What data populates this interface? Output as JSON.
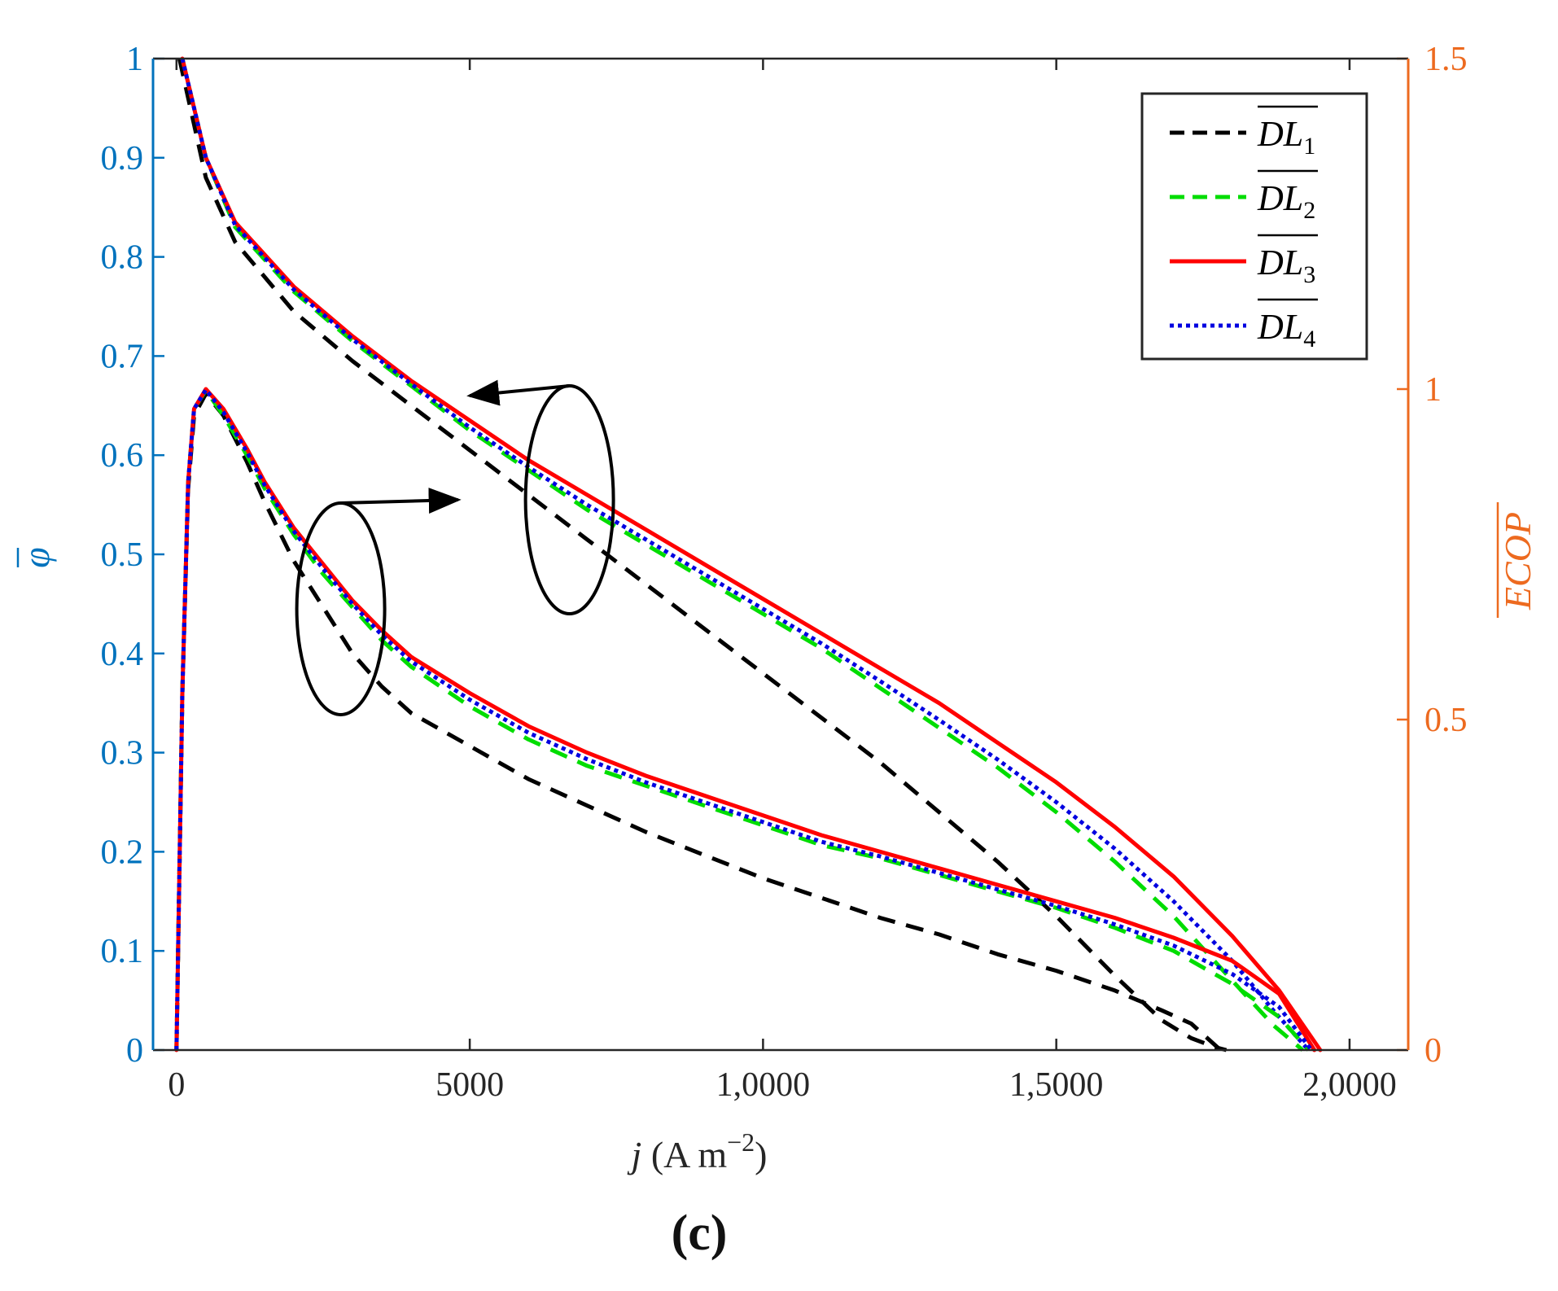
{
  "chart_data": {
    "type": "line",
    "caption": "(c)",
    "xlabel": {
      "var": "j",
      "unit": "(A m",
      "exp": "−2",
      "close": ")"
    },
    "ylabel_left": "φ",
    "ylabel_right": "ECOP",
    "xlim": [
      -400,
      21000
    ],
    "ylim_left": [
      0,
      1
    ],
    "ylim_right": [
      0,
      1.5
    ],
    "x_ticks": [
      0,
      5000,
      10000,
      15000,
      20000
    ],
    "x_tick_labels": [
      "0",
      "5000",
      "1,0000",
      "1,5000",
      "2,0000"
    ],
    "y_left_ticks": [
      0,
      0.1,
      0.2,
      0.3,
      0.4,
      0.5,
      0.6,
      0.7,
      0.8,
      0.9,
      1
    ],
    "y_left_tick_labels": [
      "0",
      "0.1",
      "0.2",
      "0.3",
      "0.4",
      "0.5",
      "0.6",
      "0.7",
      "0.8",
      "0.9",
      "1"
    ],
    "y_right_ticks": [
      0,
      0.5,
      1,
      1.5
    ],
    "y_right_tick_labels": [
      "0",
      "0.5",
      "1",
      "1.5"
    ],
    "colors": {
      "left_axis": "#0072BD",
      "right_axis": "#ED6A1F",
      "DL1": "#000000",
      "DL2": "#00DD00",
      "DL3": "#FF0000",
      "DL4": "#0000E0"
    },
    "legend": {
      "position": "top-right",
      "entries": [
        {
          "key": "DL1",
          "base": "DL",
          "sub": "1",
          "style": "dashed"
        },
        {
          "key": "DL2",
          "base": "DL",
          "sub": "2",
          "style": "dashed"
        },
        {
          "key": "DL3",
          "base": "DL",
          "sub": "3",
          "style": "solid"
        },
        {
          "key": "DL4",
          "base": "DL",
          "sub": "4",
          "style": "dotted"
        }
      ]
    },
    "annotations": [
      {
        "type": "ellipse-arrow",
        "meaning": "upper curve group refers to left axis",
        "points_to": "left"
      },
      {
        "type": "ellipse-arrow",
        "meaning": "lower curve group refers to right axis",
        "points_to": "right"
      }
    ],
    "series": [
      {
        "name": "DL1",
        "axis": "left",
        "metric": "phi",
        "x": [
          50,
          500,
          1000,
          2000,
          3000,
          4000,
          5000,
          6000,
          7000,
          8000,
          9000,
          10000,
          11000,
          12000,
          13000,
          14000,
          15000,
          16000,
          16800,
          17300,
          17700,
          17900
        ],
        "y": [
          1.0,
          0.88,
          0.815,
          0.745,
          0.695,
          0.65,
          0.605,
          0.56,
          0.515,
          0.47,
          0.425,
          0.38,
          0.335,
          0.29,
          0.24,
          0.19,
          0.135,
          0.075,
          0.03,
          0.012,
          0.003,
          0
        ]
      },
      {
        "name": "DL2",
        "axis": "left",
        "metric": "phi",
        "x": [
          100,
          500,
          1000,
          2000,
          3000,
          4000,
          5000,
          6000,
          7000,
          8000,
          9000,
          10000,
          11000,
          12000,
          13000,
          14000,
          15000,
          16000,
          17000,
          18000,
          18700,
          19200
        ],
        "y": [
          1.0,
          0.9,
          0.83,
          0.765,
          0.715,
          0.67,
          0.625,
          0.585,
          0.545,
          0.51,
          0.475,
          0.44,
          0.405,
          0.365,
          0.325,
          0.285,
          0.24,
          0.19,
          0.135,
          0.07,
          0.025,
          0
        ]
      },
      {
        "name": "DL3",
        "axis": "left",
        "metric": "phi",
        "x": [
          100,
          500,
          1000,
          2000,
          3000,
          4000,
          5000,
          6000,
          7000,
          8000,
          9000,
          10000,
          11000,
          12000,
          13000,
          14000,
          15000,
          16000,
          17000,
          18000,
          18800,
          19500
        ],
        "y": [
          1.0,
          0.9,
          0.835,
          0.77,
          0.72,
          0.675,
          0.635,
          0.595,
          0.56,
          0.525,
          0.49,
          0.455,
          0.42,
          0.385,
          0.35,
          0.31,
          0.27,
          0.225,
          0.175,
          0.115,
          0.06,
          0
        ]
      },
      {
        "name": "DL4",
        "axis": "left",
        "metric": "phi",
        "x": [
          100,
          500,
          1000,
          2000,
          3000,
          4000,
          5000,
          6000,
          7000,
          8000,
          9000,
          10000,
          11000,
          12000,
          13000,
          14000,
          15000,
          16000,
          17000,
          18000,
          18700,
          19300
        ],
        "y": [
          1.0,
          0.9,
          0.832,
          0.767,
          0.717,
          0.672,
          0.628,
          0.588,
          0.55,
          0.515,
          0.48,
          0.445,
          0.41,
          0.372,
          0.333,
          0.293,
          0.25,
          0.203,
          0.15,
          0.09,
          0.04,
          0
        ]
      },
      {
        "name": "DL1",
        "axis": "right",
        "metric": "ECOP",
        "x": [
          0,
          100,
          200,
          300,
          500,
          800,
          1200,
          1500,
          2000,
          2500,
          3000,
          3500,
          4000,
          5000,
          6000,
          7000,
          8000,
          9000,
          10000,
          11000,
          12000,
          13000,
          14000,
          15000,
          16000,
          16800,
          17300,
          17800
        ],
        "y": [
          0,
          0.54,
          0.85,
          0.96,
          0.993,
          0.96,
          0.89,
          0.83,
          0.74,
          0.67,
          0.6,
          0.55,
          0.51,
          0.46,
          0.41,
          0.37,
          0.33,
          0.295,
          0.26,
          0.23,
          0.2,
          0.175,
          0.145,
          0.12,
          0.09,
          0.06,
          0.04,
          0
        ]
      },
      {
        "name": "DL2",
        "axis": "right",
        "metric": "ECOP",
        "x": [
          0,
          100,
          200,
          300,
          500,
          800,
          1200,
          1500,
          2000,
          2500,
          3000,
          3500,
          4000,
          5000,
          6000,
          7000,
          8000,
          9000,
          10000,
          11000,
          12000,
          13000,
          14000,
          15000,
          16000,
          17000,
          18000,
          18800,
          19300
        ],
        "y": [
          0,
          0.54,
          0.86,
          0.97,
          0.998,
          0.96,
          0.9,
          0.85,
          0.78,
          0.72,
          0.67,
          0.62,
          0.58,
          0.52,
          0.47,
          0.43,
          0.4,
          0.37,
          0.34,
          0.31,
          0.29,
          0.265,
          0.24,
          0.215,
          0.185,
          0.15,
          0.1,
          0.05,
          0
        ]
      },
      {
        "name": "DL3",
        "axis": "right",
        "metric": "ECOP",
        "x": [
          0,
          100,
          200,
          300,
          500,
          800,
          1200,
          1500,
          2000,
          2500,
          3000,
          3500,
          4000,
          5000,
          6000,
          7000,
          8000,
          9000,
          10000,
          11000,
          12000,
          13000,
          14000,
          15000,
          16000,
          17000,
          18000,
          18800,
          19400
        ],
        "y": [
          0,
          0.54,
          0.86,
          0.97,
          1.0,
          0.97,
          0.91,
          0.86,
          0.79,
          0.735,
          0.68,
          0.635,
          0.595,
          0.54,
          0.49,
          0.45,
          0.415,
          0.385,
          0.355,
          0.325,
          0.3,
          0.275,
          0.25,
          0.225,
          0.2,
          0.17,
          0.135,
          0.085,
          0
        ]
      },
      {
        "name": "DL4",
        "axis": "right",
        "metric": "ECOP",
        "x": [
          0,
          100,
          200,
          300,
          500,
          800,
          1200,
          1500,
          2000,
          2500,
          3000,
          3500,
          4000,
          5000,
          6000,
          7000,
          8000,
          9000,
          10000,
          11000,
          12000,
          13000,
          14000,
          15000,
          16000,
          17000,
          18000,
          18800,
          19350
        ],
        "y": [
          0,
          0.54,
          0.86,
          0.97,
          0.999,
          0.965,
          0.905,
          0.855,
          0.785,
          0.728,
          0.675,
          0.628,
          0.588,
          0.53,
          0.48,
          0.44,
          0.405,
          0.375,
          0.345,
          0.315,
          0.293,
          0.268,
          0.243,
          0.218,
          0.19,
          0.158,
          0.115,
          0.065,
          0
        ]
      }
    ]
  }
}
